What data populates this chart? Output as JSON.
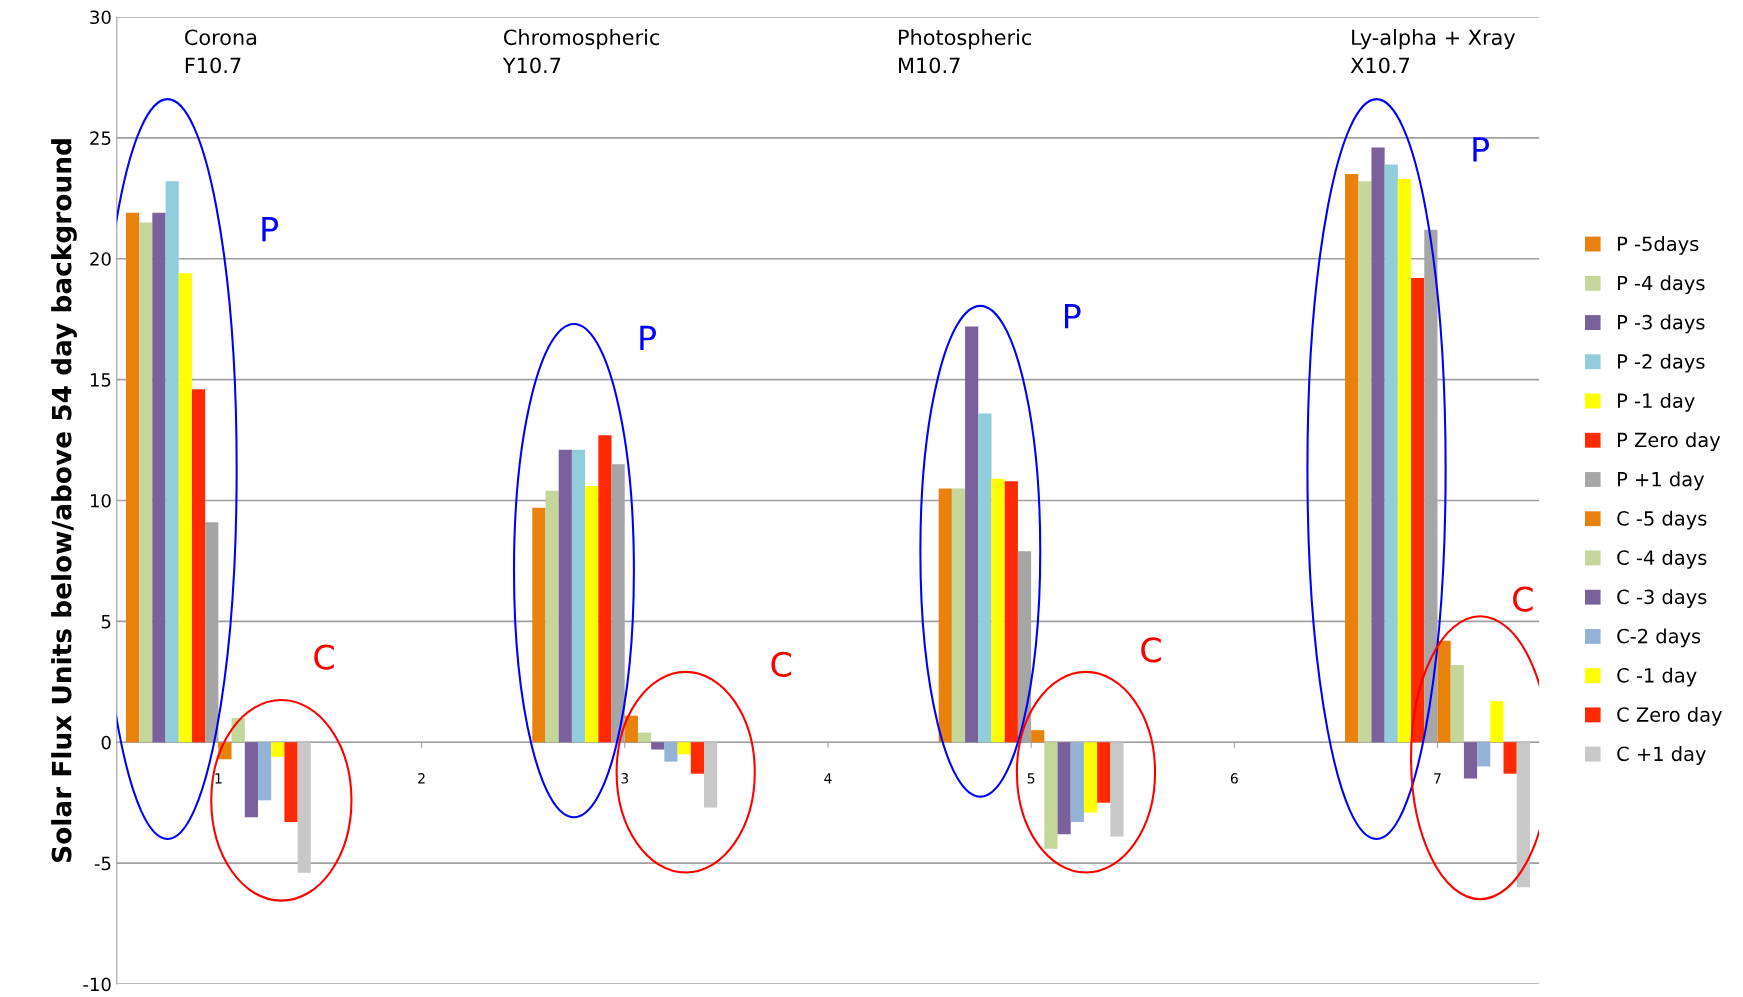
{
  "chart_data": {
    "type": "bar",
    "ylabel": "Solar Flux Units below/above 54 day background",
    "categories": [
      "1",
      "2",
      "3",
      "4",
      "5",
      "6",
      "7"
    ],
    "ylim": [
      -10,
      30
    ],
    "yticks": [
      -10,
      -5,
      0,
      5,
      10,
      15,
      20,
      25,
      30
    ],
    "grid": "y",
    "legend": "right",
    "series": [
      {
        "name": "P -5days",
        "color": "#e8820c",
        "values": [
          21.9,
          null,
          9.7,
          null,
          10.5,
          null,
          23.5
        ]
      },
      {
        "name": "P -4 days",
        "color": "#c5d69b",
        "values": [
          21.5,
          null,
          10.4,
          null,
          10.5,
          null,
          23.2
        ]
      },
      {
        "name": "P -3 days",
        "color": "#7a619c",
        "values": [
          21.9,
          null,
          12.1,
          null,
          17.2,
          null,
          24.6
        ]
      },
      {
        "name": "P -2 days",
        "color": "#92cddc",
        "values": [
          23.2,
          null,
          12.1,
          null,
          13.6,
          null,
          23.9
        ]
      },
      {
        "name": "P -1 day",
        "color": "#ffff00",
        "values": [
          19.4,
          null,
          10.6,
          null,
          10.9,
          null,
          23.3
        ]
      },
      {
        "name": "P Zero day",
        "color": "#ff2a00",
        "values": [
          14.6,
          null,
          12.7,
          null,
          10.8,
          null,
          19.2
        ]
      },
      {
        "name": "P +1 day",
        "color": "#a6a6a6",
        "values": [
          9.1,
          null,
          11.5,
          null,
          7.9,
          null,
          21.2
        ]
      },
      {
        "name": "C -5 days",
        "color": "#e8820c",
        "values": [
          -0.7,
          null,
          1.1,
          null,
          0.5,
          null,
          4.2
        ]
      },
      {
        "name": "C -4 days",
        "color": "#c5d69b",
        "values": [
          1.0,
          null,
          0.4,
          null,
          -4.4,
          null,
          3.2
        ]
      },
      {
        "name": "C -3 days",
        "color": "#7a619c",
        "values": [
          -3.1,
          null,
          -0.3,
          null,
          -3.8,
          null,
          -1.5
        ]
      },
      {
        "name": "C-2 days",
        "color": "#95b3d7",
        "values": [
          -2.4,
          null,
          -0.8,
          null,
          -3.3,
          null,
          -1.0
        ]
      },
      {
        "name": "C -1 day",
        "color": "#ffff00",
        "values": [
          -0.6,
          null,
          -0.5,
          null,
          -2.9,
          null,
          1.7
        ]
      },
      {
        "name": "C Zero day",
        "color": "#ff2a00",
        "values": [
          -3.3,
          null,
          -1.3,
          null,
          -2.5,
          null,
          -1.3
        ]
      },
      {
        "name": "C +1 day",
        "color": "#c8c8c8",
        "values": [
          -5.4,
          null,
          -2.7,
          null,
          -3.9,
          null,
          -6.0
        ]
      }
    ],
    "annotations": [
      "Corona\nF10.7",
      "Chromospheric\nY10.7",
      "Photospheric\nM10.7",
      "Ly-alpha + Xray\nX10.7",
      "P",
      "P",
      "P",
      "P",
      "C",
      "C",
      "C",
      "C"
    ]
  }
}
